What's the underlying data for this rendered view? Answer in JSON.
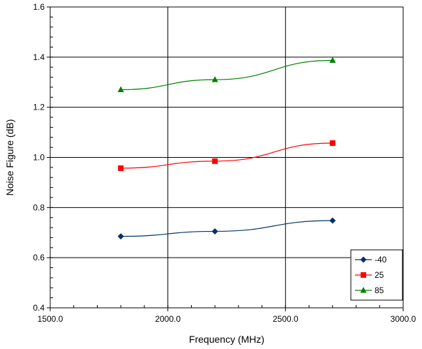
{
  "chart_data": {
    "type": "line",
    "xlabel": "Frequency (MHz)",
    "ylabel": "Noise Figure (dB)",
    "xlim": [
      1500,
      3000
    ],
    "ylim": [
      0.4,
      1.6
    ],
    "x_ticks": [
      "1500.0",
      "2000.0",
      "2500.0",
      "3000.0"
    ],
    "y_ticks": [
      "0.4",
      "0.6",
      "0.8",
      "1.0",
      "1.2",
      "1.4",
      "1.6"
    ],
    "grid": true,
    "legend_position": "bottom-right",
    "series": [
      {
        "name": "-40",
        "color": "#003366",
        "marker": "diamond",
        "x": [
          1800,
          2200,
          2700
        ],
        "y": [
          0.685,
          0.705,
          0.748
        ]
      },
      {
        "name": "25",
        "color": "#ff0000",
        "marker": "square",
        "x": [
          1800,
          2200,
          2700
        ],
        "y": [
          0.957,
          0.985,
          1.057
        ]
      },
      {
        "name": "85",
        "color": "#008000",
        "marker": "triangle",
        "x": [
          1800,
          2200,
          2700
        ],
        "y": [
          1.27,
          1.31,
          1.387
        ]
      }
    ]
  }
}
